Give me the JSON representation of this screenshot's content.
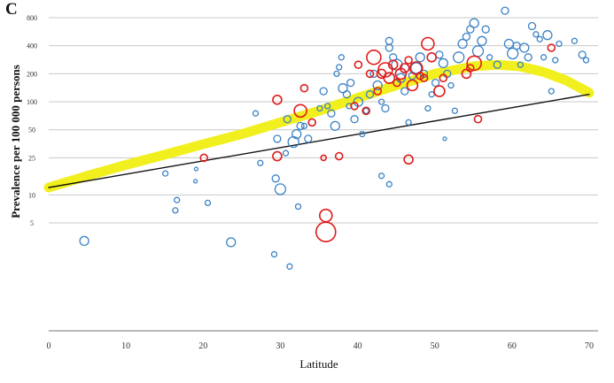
{
  "panel_letter": "C",
  "colors": {
    "blue": "#3b82c4",
    "red": "#e01b1b",
    "yellow": "#f2ef1e",
    "black_line": "#111111",
    "grid": "#c8c8c8"
  },
  "chart_data": {
    "type": "scatter",
    "title": "",
    "xlabel": "Latitude",
    "ylabel": "Prevalence per 100 000 persons",
    "xlim": [
      0,
      70
    ],
    "x_ticks": [
      0,
      10,
      20,
      30,
      40,
      50,
      60,
      70
    ],
    "y_scale": "log",
    "y_ticks": [
      5,
      10,
      25,
      50,
      100,
      200,
      400,
      800
    ],
    "grid": "horizontal",
    "legend": "none",
    "series": [
      {
        "color": "blue",
        "points": [
          [
            4.6,
            3.2,
            5
          ],
          [
            15.1,
            17,
            3
          ],
          [
            16.4,
            6.8,
            3
          ],
          [
            16.6,
            8.8,
            3
          ],
          [
            19.1,
            19,
            2
          ],
          [
            19,
            14,
            2
          ],
          [
            20.6,
            8.2,
            3
          ],
          [
            23.6,
            3.1,
            5
          ],
          [
            26.8,
            75,
            3
          ],
          [
            27.4,
            22,
            3
          ],
          [
            29.2,
            2.3,
            3
          ],
          [
            29.4,
            15,
            4
          ],
          [
            29.6,
            40,
            4
          ],
          [
            30,
            11.5,
            6
          ],
          [
            30.7,
            28,
            3
          ],
          [
            30.9,
            65,
            4
          ],
          [
            31.2,
            1.7,
            3
          ],
          [
            31.7,
            37,
            6
          ],
          [
            32.1,
            45,
            5
          ],
          [
            32.3,
            7.5,
            3
          ],
          [
            32.6,
            55,
            4
          ],
          [
            33.1,
            55,
            3
          ],
          [
            33.6,
            40,
            4
          ],
          [
            34.1,
            60,
            4
          ],
          [
            35.1,
            85,
            3
          ],
          [
            35.6,
            130,
            4
          ],
          [
            36.1,
            90,
            3
          ],
          [
            36.6,
            75,
            4
          ],
          [
            37.1,
            55,
            5
          ],
          [
            37.3,
            200,
            3
          ],
          [
            37.6,
            235,
            3
          ],
          [
            37.9,
            300,
            3
          ],
          [
            38.1,
            140,
            5
          ],
          [
            38.6,
            120,
            4
          ],
          [
            38.9,
            90,
            3
          ],
          [
            39.1,
            160,
            4
          ],
          [
            39.6,
            65,
            4
          ],
          [
            40.1,
            100,
            5
          ],
          [
            40.6,
            45,
            3
          ],
          [
            41.1,
            80,
            3
          ],
          [
            41.6,
            120,
            4
          ],
          [
            42.1,
            200,
            4
          ],
          [
            42.6,
            150,
            5
          ],
          [
            43.1,
            100,
            3
          ],
          [
            43.1,
            16,
            3
          ],
          [
            43.6,
            85,
            4
          ],
          [
            44.1,
            13,
            3
          ],
          [
            44.1,
            380,
            4
          ],
          [
            44.1,
            450,
            4
          ],
          [
            44.6,
            300,
            4
          ],
          [
            45.1,
            250,
            6
          ],
          [
            45.6,
            180,
            5
          ],
          [
            46.1,
            130,
            4
          ],
          [
            46.6,
            60,
            3
          ],
          [
            47.1,
            190,
            4
          ],
          [
            47.6,
            230,
            6
          ],
          [
            48.1,
            300,
            5
          ],
          [
            48.6,
            200,
            4
          ],
          [
            49.1,
            85,
            3
          ],
          [
            49.6,
            120,
            3
          ],
          [
            50.1,
            160,
            4
          ],
          [
            50.6,
            320,
            4
          ],
          [
            51.1,
            260,
            5
          ],
          [
            51.3,
            40,
            2
          ],
          [
            51.6,
            200,
            4
          ],
          [
            52.1,
            150,
            3
          ],
          [
            52.6,
            80,
            3
          ],
          [
            53.1,
            300,
            6
          ],
          [
            53.6,
            420,
            5
          ],
          [
            54.1,
            500,
            4
          ],
          [
            54.6,
            600,
            4
          ],
          [
            55.1,
            700,
            5
          ],
          [
            55.6,
            350,
            6
          ],
          [
            56.1,
            450,
            5
          ],
          [
            56.6,
            600,
            4
          ],
          [
            57.1,
            300,
            3
          ],
          [
            58.1,
            250,
            4
          ],
          [
            59.1,
            950,
            4
          ],
          [
            59.6,
            420,
            5
          ],
          [
            60.1,
            330,
            6
          ],
          [
            60.6,
            400,
            4
          ],
          [
            61.1,
            250,
            3
          ],
          [
            61.6,
            380,
            5
          ],
          [
            62.1,
            300,
            4
          ],
          [
            62.6,
            650,
            4
          ],
          [
            63.1,
            530,
            3
          ],
          [
            63.6,
            470,
            3
          ],
          [
            64.1,
            300,
            3
          ],
          [
            64.6,
            520,
            5
          ],
          [
            65.1,
            130,
            3
          ],
          [
            65.6,
            280,
            3
          ],
          [
            66.1,
            420,
            3
          ],
          [
            68.1,
            450,
            3
          ],
          [
            69.1,
            320,
            4
          ],
          [
            69.6,
            280,
            3
          ]
        ]
      },
      {
        "color": "red",
        "points": [
          [
            20.1,
            25,
            4
          ],
          [
            29.6,
            26,
            5
          ],
          [
            29.6,
            105,
            5
          ],
          [
            32.6,
            80,
            7
          ],
          [
            33.1,
            140,
            4
          ],
          [
            34.1,
            60,
            4
          ],
          [
            35.6,
            25,
            3
          ],
          [
            35.9,
            4,
            11
          ],
          [
            35.9,
            6,
            7
          ],
          [
            37.6,
            26,
            4
          ],
          [
            39.6,
            90,
            4
          ],
          [
            40.1,
            250,
            4
          ],
          [
            41.1,
            80,
            4
          ],
          [
            41.6,
            200,
            4
          ],
          [
            42.1,
            300,
            8
          ],
          [
            42.6,
            130,
            4
          ],
          [
            43.1,
            200,
            5
          ],
          [
            43.6,
            220,
            8
          ],
          [
            44.1,
            180,
            6
          ],
          [
            44.6,
            250,
            5
          ],
          [
            45.1,
            160,
            4
          ],
          [
            45.6,
            200,
            6
          ],
          [
            46.1,
            230,
            5
          ],
          [
            46.6,
            280,
            4
          ],
          [
            46.6,
            24,
            5
          ],
          [
            47.1,
            150,
            6
          ],
          [
            47.6,
            230,
            7
          ],
          [
            48.1,
            190,
            4
          ],
          [
            48.6,
            180,
            4
          ],
          [
            49.1,
            420,
            7
          ],
          [
            49.6,
            300,
            5
          ],
          [
            50.6,
            130,
            6
          ],
          [
            51.1,
            180,
            4
          ],
          [
            54.1,
            200,
            5
          ],
          [
            54.6,
            230,
            4
          ],
          [
            55.1,
            260,
            8
          ],
          [
            55.6,
            65,
            4
          ],
          [
            65.1,
            380,
            4
          ]
        ]
      }
    ],
    "trend_lines": [
      {
        "color": "black",
        "x": [
          0,
          70
        ],
        "y": [
          12,
          120
        ]
      },
      {
        "color": "yellow",
        "x": [
          0,
          5,
          10,
          15,
          20,
          25,
          30,
          35,
          40,
          45,
          50,
          55,
          58,
          61,
          64,
          67,
          70
        ],
        "y": [
          12,
          16,
          21,
          27,
          35,
          45,
          60,
          80,
          110,
          150,
          200,
          240,
          250,
          240,
          210,
          170,
          125
        ]
      }
    ]
  }
}
